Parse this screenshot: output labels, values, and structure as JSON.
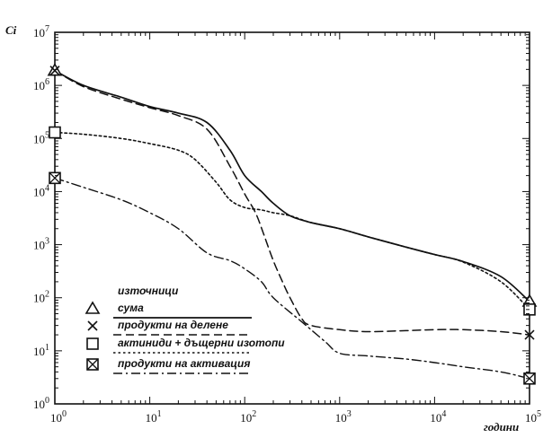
{
  "chart_data": {
    "type": "line",
    "xscale": "log",
    "yscale": "log",
    "xlim": [
      1,
      100000
    ],
    "ylim": [
      1,
      10000000
    ],
    "ylabel": "Ci",
    "xlabel": "години",
    "grid": false,
    "x_ticks": [
      {
        "base": "10",
        "exp": "0"
      },
      {
        "base": "10",
        "exp": "1"
      },
      {
        "base": "10",
        "exp": "2"
      },
      {
        "base": "10",
        "exp": "3"
      },
      {
        "base": "10",
        "exp": "4"
      },
      {
        "base": "10",
        "exp": "5"
      }
    ],
    "y_ticks": [
      {
        "base": "10",
        "exp": "0"
      },
      {
        "base": "10",
        "exp": "1"
      },
      {
        "base": "10",
        "exp": "2"
      },
      {
        "base": "10",
        "exp": "3"
      },
      {
        "base": "10",
        "exp": "4"
      },
      {
        "base": "10",
        "exp": "5"
      },
      {
        "base": "10",
        "exp": "6"
      },
      {
        "base": "10",
        "exp": "7"
      }
    ],
    "legend": {
      "title": "източници",
      "placement": "lower-left"
    },
    "series": [
      {
        "name": "сума",
        "style": "solid",
        "marker": "triangle",
        "x": [
          1,
          2,
          5,
          10,
          20,
          40,
          70,
          100,
          150,
          200,
          300,
          500,
          1000,
          2000,
          5000,
          10000,
          20000,
          50000,
          100000
        ],
        "y": [
          1900000,
          1000000,
          600000,
          400000,
          300000,
          200000,
          60000,
          20000,
          10000,
          6000,
          3500,
          2600,
          2000,
          1400,
          900,
          650,
          480,
          250,
          85
        ]
      },
      {
        "name": "продукти на делене",
        "style": "dashed",
        "marker": "x",
        "x": [
          1,
          2,
          5,
          10,
          20,
          40,
          70,
          100,
          130,
          160,
          200,
          250,
          300,
          400,
          500,
          1000,
          2000,
          5000,
          10000,
          20000,
          50000,
          100000
        ],
        "y": [
          1900000,
          950000,
          550000,
          380000,
          270000,
          150000,
          30000,
          9000,
          4000,
          1500,
          500,
          200,
          100,
          40,
          30,
          25,
          23,
          24,
          25,
          25,
          23,
          20
        ]
      },
      {
        "name": "актиниди + дъщерни изотопи",
        "style": "dotted",
        "marker": "square",
        "x": [
          1,
          2,
          5,
          10,
          20,
          30,
          50,
          70,
          100,
          150,
          200,
          300,
          500,
          1000,
          2000,
          5000,
          10000,
          20000,
          50000,
          100000
        ],
        "y": [
          130000,
          120000,
          100000,
          80000,
          60000,
          40000,
          15000,
          7000,
          5000,
          4500,
          4000,
          3500,
          2600,
          2000,
          1400,
          900,
          650,
          470,
          200,
          60
        ]
      },
      {
        "name": "продукти на активация",
        "style": "dashdot",
        "marker": "boxed-x",
        "x": [
          1,
          2,
          5,
          10,
          20,
          40,
          70,
          100,
          150,
          200,
          400,
          700,
          1000,
          2000,
          5000,
          10000,
          20000,
          50000,
          100000
        ],
        "y": [
          18000,
          12000,
          7000,
          4000,
          2000,
          700,
          500,
          350,
          200,
          100,
          35,
          15,
          9,
          8,
          7,
          6,
          5,
          4,
          3
        ]
      }
    ]
  }
}
